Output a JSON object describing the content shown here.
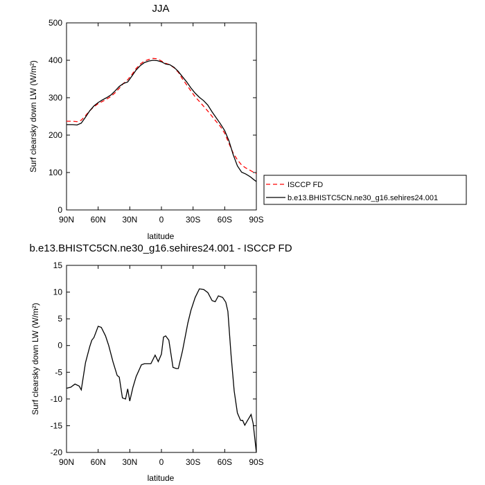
{
  "chart_data": [
    {
      "type": "line",
      "title": "JJA",
      "xlabel": "latitude",
      "ylabel": "Surf clearsky down LW (W/m²)",
      "xlim": [
        90,
        -90
      ],
      "ylim": [
        0,
        500
      ],
      "x_ticks": [
        90,
        60,
        30,
        0,
        -30,
        -60,
        -90
      ],
      "x_tick_labels": [
        "90N",
        "60N",
        "30N",
        "0",
        "30S",
        "60S",
        "90S"
      ],
      "y_ticks": [
        0,
        100,
        200,
        300,
        400,
        500
      ],
      "y_tick_labels": [
        "0",
        "100",
        "200",
        "300",
        "400",
        "500"
      ],
      "legend": {
        "position": "right"
      },
      "series": [
        {
          "name": "ISCCP FD",
          "color": "#ff0000",
          "dash": "dashed",
          "points": [
            [
              90,
              237
            ],
            [
              84,
              237
            ],
            [
              80,
              236
            ],
            [
              76,
              240
            ],
            [
              72,
              252
            ],
            [
              68,
              265
            ],
            [
              64,
              276
            ],
            [
              60,
              284
            ],
            [
              56,
              290
            ],
            [
              52,
              296
            ],
            [
              48,
              303
            ],
            [
              44,
              313
            ],
            [
              40,
              325
            ],
            [
              36,
              338
            ],
            [
              32,
              348
            ],
            [
              28,
              362
            ],
            [
              24,
              378
            ],
            [
              20,
              390
            ],
            [
              16,
              398
            ],
            [
              12,
              402
            ],
            [
              8,
              405
            ],
            [
              4,
              404
            ],
            [
              0,
              398
            ],
            [
              -4,
              392
            ],
            [
              -8,
              388
            ],
            [
              -12,
              380
            ],
            [
              -16,
              368
            ],
            [
              -20,
              350
            ],
            [
              -24,
              334
            ],
            [
              -28,
              318
            ],
            [
              -32,
              302
            ],
            [
              -36,
              290
            ],
            [
              -40,
              277
            ],
            [
              -44,
              264
            ],
            [
              -48,
              250
            ],
            [
              -52,
              236
            ],
            [
              -56,
              223
            ],
            [
              -60,
              205
            ],
            [
              -64,
              178
            ],
            [
              -68,
              152
            ],
            [
              -72,
              134
            ],
            [
              -76,
              120
            ],
            [
              -80,
              112
            ],
            [
              -84,
              106
            ],
            [
              -88,
              100
            ],
            [
              -90,
              97
            ]
          ]
        },
        {
          "name": "b.e13.BHISTC5CN.ne30_g16.sehires24.001",
          "color": "#000000",
          "dash": "solid",
          "points": [
            [
              90,
              228
            ],
            [
              84,
              228
            ],
            [
              80,
              227
            ],
            [
              76,
              232
            ],
            [
              72,
              248
            ],
            [
              68,
              265
            ],
            [
              64,
              278
            ],
            [
              60,
              287
            ],
            [
              56,
              294
            ],
            [
              52,
              300
            ],
            [
              48,
              307
            ],
            [
              44,
              318
            ],
            [
              40,
              330
            ],
            [
              36,
              338
            ],
            [
              32,
              342
            ],
            [
              28,
              358
            ],
            [
              24,
              374
            ],
            [
              20,
              386
            ],
            [
              16,
              394
            ],
            [
              12,
              398
            ],
            [
              8,
              400
            ],
            [
              4,
              399
            ],
            [
              0,
              396
            ],
            [
              -4,
              390
            ],
            [
              -8,
              388
            ],
            [
              -12,
              381
            ],
            [
              -16,
              370
            ],
            [
              -20,
              356
            ],
            [
              -24,
              342
            ],
            [
              -28,
              326
            ],
            [
              -32,
              312
            ],
            [
              -36,
              301
            ],
            [
              -40,
              292
            ],
            [
              -44,
              280
            ],
            [
              -48,
              262
            ],
            [
              -52,
              246
            ],
            [
              -56,
              230
            ],
            [
              -60,
              212
            ],
            [
              -64,
              185
            ],
            [
              -68,
              148
            ],
            [
              -72,
              118
            ],
            [
              -76,
              101
            ],
            [
              -80,
              96
            ],
            [
              -84,
              89
            ],
            [
              -88,
              80
            ],
            [
              -90,
              76
            ]
          ]
        }
      ]
    },
    {
      "type": "line",
      "title": "b.e13.BHISTC5CN.ne30_g16.sehires24.001 - ISCCP FD",
      "xlabel": "latitude",
      "ylabel": "Surf clearsky down LW (W/m²)",
      "xlim": [
        90,
        -90
      ],
      "ylim": [
        -20,
        15
      ],
      "x_ticks": [
        90,
        60,
        30,
        0,
        -30,
        -60,
        -90
      ],
      "x_tick_labels": [
        "90N",
        "60N",
        "30N",
        "0",
        "30S",
        "60S",
        "90S"
      ],
      "y_ticks": [
        -20,
        -15,
        -10,
        -5,
        0,
        5,
        10,
        15
      ],
      "y_tick_labels": [
        "-20",
        "-15",
        "-10",
        "-5",
        "0",
        "5",
        "10",
        "15"
      ],
      "series": [
        {
          "color": "#000000",
          "dash": "solid",
          "points": [
            [
              90,
              -8
            ],
            [
              86,
              -7.8
            ],
            [
              82,
              -7.2
            ],
            [
              78,
              -7.6
            ],
            [
              76,
              -8.3
            ],
            [
              72,
              -3.2
            ],
            [
              68,
              -0.2
            ],
            [
              66,
              1.0
            ],
            [
              64,
              1.5
            ],
            [
              60,
              3.6
            ],
            [
              57,
              3.4
            ],
            [
              53,
              1.8
            ],
            [
              50,
              0.0
            ],
            [
              46,
              -3.0
            ],
            [
              42,
              -5.6
            ],
            [
              40,
              -5.9
            ],
            [
              37,
              -9.8
            ],
            [
              34,
              -10.0
            ],
            [
              32,
              -8.1
            ],
            [
              30,
              -10.4
            ],
            [
              27,
              -7.8
            ],
            [
              24,
              -5.8
            ],
            [
              19,
              -3.6
            ],
            [
              16,
              -3.4
            ],
            [
              10,
              -3.4
            ],
            [
              6,
              -1.8
            ],
            [
              3,
              -3.0
            ],
            [
              0,
              -1.6
            ],
            [
              -2,
              1.6
            ],
            [
              -4,
              1.8
            ],
            [
              -7,
              1.0
            ],
            [
              -11,
              -4.1
            ],
            [
              -14,
              -4.3
            ],
            [
              -16,
              -4.3
            ],
            [
              -20,
              -1.0
            ],
            [
              -25,
              4.2
            ],
            [
              -28,
              6.6
            ],
            [
              -32,
              9.0
            ],
            [
              -36,
              10.6
            ],
            [
              -40,
              10.5
            ],
            [
              -44,
              9.9
            ],
            [
              -48,
              8.4
            ],
            [
              -51,
              8.2
            ],
            [
              -54,
              9.3
            ],
            [
              -58,
              9.0
            ],
            [
              -61,
              8.1
            ],
            [
              -63,
              6.4
            ],
            [
              -66,
              -1.8
            ],
            [
              -69,
              -8.5
            ],
            [
              -72,
              -12.6
            ],
            [
              -75,
              -14.0
            ],
            [
              -77,
              -14.0
            ],
            [
              -79,
              -14.9
            ],
            [
              -82,
              -13.9
            ],
            [
              -85,
              -12.9
            ],
            [
              -87,
              -14.6
            ],
            [
              -90,
              -20.0
            ]
          ]
        }
      ]
    }
  ]
}
